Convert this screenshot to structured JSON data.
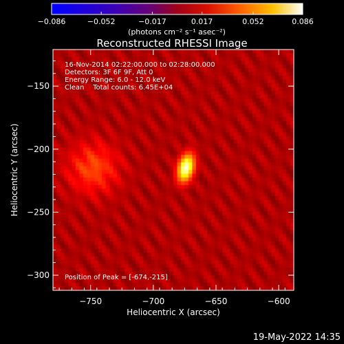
{
  "chart_data": {
    "type": "heatmap",
    "title": "Reconstructed RHESSI Image",
    "xlabel": "Heliocentric X (arcsec)",
    "ylabel": "Heliocentric Y (arcsec)",
    "xlim": [
      -780,
      -588
    ],
    "ylim": [
      -312,
      -121
    ],
    "x_ticks": [
      -750,
      -700,
      -650,
      -600
    ],
    "x_tick_labels": [
      "−750",
      "−700",
      "−650",
      "−600"
    ],
    "y_ticks": [
      -150,
      -200,
      -250,
      -300
    ],
    "y_tick_labels": [
      "−150",
      "−200",
      "−250",
      "−300"
    ],
    "colorbar": {
      "min": -0.086,
      "max": 0.086,
      "ticks": [
        -0.086,
        -0.052,
        -0.017,
        0.017,
        0.052,
        0.086
      ],
      "tick_labels": [
        "−0.086",
        "−0.052",
        "−0.017",
        "0.017",
        "0.052",
        "0.086"
      ],
      "units_label": "(photons cm⁻² s⁻¹ asec⁻²)"
    },
    "annotations": [
      "16-Nov-2014 02:22:00.000 to 02:28:00.000",
      "Detectors: 3F 6F 9F, Att 0",
      "Energy Range: 6.0 - 12.0 keV",
      "Clean    Total counts: 6.45E+04"
    ],
    "peak_label": "Position of Peak = [-674,-215]",
    "peak": {
      "x": -674,
      "y": -215,
      "value": 0.086
    },
    "source_gaussian": {
      "sigma_x": 5,
      "sigma_y": 9,
      "tilt_deg": -15
    },
    "grid": false,
    "legend": "none",
    "colormap": "hot"
  },
  "timestamp": "19-May-2022 14:35",
  "colors": {
    "background": "#000000",
    "foreground": "#ffffff"
  }
}
